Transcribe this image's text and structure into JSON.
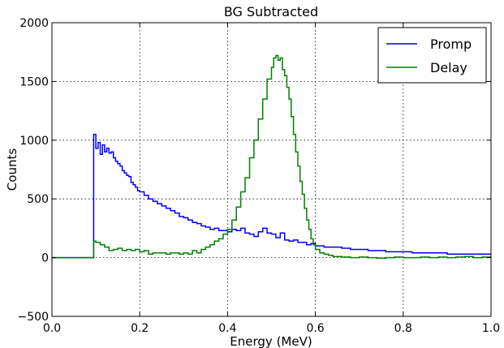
{
  "chart_data": {
    "type": "line",
    "title": "BG Subtracted",
    "xlabel": "Energy (MeV)",
    "ylabel": "Counts",
    "xlim": [
      0.0,
      1.0
    ],
    "ylim": [
      -500,
      2000
    ],
    "xticks": [
      0.0,
      0.2,
      0.4,
      0.6,
      0.8,
      1.0
    ],
    "xtick_labels": [
      "0.0",
      "0.2",
      "0.4",
      "0.6",
      "0.8",
      "1.0"
    ],
    "yticks": [
      -500,
      0,
      500,
      1000,
      1500,
      2000
    ],
    "ytick_labels": [
      "−500",
      "0",
      "500",
      "1000",
      "1500",
      "2000"
    ],
    "grid": true,
    "legend_position": "top-right",
    "series": [
      {
        "name": "Promp",
        "color": "#0000ff",
        "points": [
          [
            0.0,
            0
          ],
          [
            0.09,
            0
          ],
          [
            0.095,
            1050
          ],
          [
            0.1,
            930
          ],
          [
            0.105,
            980
          ],
          [
            0.11,
            880
          ],
          [
            0.115,
            960
          ],
          [
            0.12,
            900
          ],
          [
            0.125,
            930
          ],
          [
            0.13,
            890
          ],
          [
            0.135,
            900
          ],
          [
            0.14,
            850
          ],
          [
            0.145,
            820
          ],
          [
            0.15,
            800
          ],
          [
            0.155,
            780
          ],
          [
            0.16,
            740
          ],
          [
            0.165,
            720
          ],
          [
            0.17,
            700
          ],
          [
            0.175,
            690
          ],
          [
            0.18,
            640
          ],
          [
            0.185,
            620
          ],
          [
            0.19,
            600
          ],
          [
            0.195,
            570
          ],
          [
            0.2,
            560
          ],
          [
            0.21,
            530
          ],
          [
            0.22,
            500
          ],
          [
            0.23,
            480
          ],
          [
            0.24,
            460
          ],
          [
            0.25,
            440
          ],
          [
            0.26,
            420
          ],
          [
            0.27,
            400
          ],
          [
            0.28,
            380
          ],
          [
            0.29,
            350
          ],
          [
            0.3,
            340
          ],
          [
            0.31,
            320
          ],
          [
            0.32,
            300
          ],
          [
            0.33,
            290
          ],
          [
            0.34,
            270
          ],
          [
            0.35,
            260
          ],
          [
            0.36,
            240
          ],
          [
            0.37,
            250
          ],
          [
            0.38,
            230
          ],
          [
            0.39,
            230
          ],
          [
            0.4,
            220
          ],
          [
            0.41,
            240
          ],
          [
            0.42,
            230
          ],
          [
            0.43,
            250
          ],
          [
            0.44,
            210
          ],
          [
            0.45,
            200
          ],
          [
            0.46,
            180
          ],
          [
            0.47,
            220
          ],
          [
            0.48,
            250
          ],
          [
            0.49,
            210
          ],
          [
            0.5,
            200
          ],
          [
            0.51,
            170
          ],
          [
            0.52,
            210
          ],
          [
            0.53,
            150
          ],
          [
            0.54,
            140
          ],
          [
            0.55,
            150
          ],
          [
            0.56,
            130
          ],
          [
            0.57,
            130
          ],
          [
            0.58,
            110
          ],
          [
            0.59,
            120
          ],
          [
            0.6,
            100
          ],
          [
            0.62,
            90
          ],
          [
            0.64,
            90
          ],
          [
            0.66,
            80
          ],
          [
            0.68,
            70
          ],
          [
            0.7,
            70
          ],
          [
            0.72,
            60
          ],
          [
            0.74,
            60
          ],
          [
            0.76,
            50
          ],
          [
            0.78,
            50
          ],
          [
            0.8,
            50
          ],
          [
            0.82,
            40
          ],
          [
            0.84,
            40
          ],
          [
            0.86,
            40
          ],
          [
            0.88,
            40
          ],
          [
            0.9,
            30
          ],
          [
            0.92,
            30
          ],
          [
            0.94,
            30
          ],
          [
            0.96,
            30
          ],
          [
            0.98,
            30
          ],
          [
            1.0,
            30
          ]
        ]
      },
      {
        "name": "Delay",
        "color": "#008000",
        "points": [
          [
            0.0,
            0
          ],
          [
            0.09,
            0
          ],
          [
            0.095,
            140
          ],
          [
            0.1,
            130
          ],
          [
            0.11,
            110
          ],
          [
            0.12,
            90
          ],
          [
            0.13,
            60
          ],
          [
            0.14,
            70
          ],
          [
            0.15,
            80
          ],
          [
            0.16,
            60
          ],
          [
            0.17,
            70
          ],
          [
            0.18,
            60
          ],
          [
            0.19,
            70
          ],
          [
            0.2,
            50
          ],
          [
            0.21,
            60
          ],
          [
            0.22,
            30
          ],
          [
            0.23,
            40
          ],
          [
            0.24,
            40
          ],
          [
            0.25,
            40
          ],
          [
            0.26,
            30
          ],
          [
            0.27,
            40
          ],
          [
            0.28,
            40
          ],
          [
            0.29,
            30
          ],
          [
            0.3,
            40
          ],
          [
            0.31,
            30
          ],
          [
            0.32,
            60
          ],
          [
            0.33,
            40
          ],
          [
            0.34,
            70
          ],
          [
            0.35,
            90
          ],
          [
            0.36,
            110
          ],
          [
            0.37,
            140
          ],
          [
            0.38,
            160
          ],
          [
            0.39,
            200
          ],
          [
            0.4,
            240
          ],
          [
            0.41,
            320
          ],
          [
            0.42,
            430
          ],
          [
            0.43,
            560
          ],
          [
            0.44,
            680
          ],
          [
            0.45,
            850
          ],
          [
            0.46,
            1000
          ],
          [
            0.47,
            1180
          ],
          [
            0.48,
            1350
          ],
          [
            0.49,
            1520
          ],
          [
            0.5,
            1620
          ],
          [
            0.505,
            1700
          ],
          [
            0.51,
            1720
          ],
          [
            0.515,
            1680
          ],
          [
            0.52,
            1700
          ],
          [
            0.525,
            1600
          ],
          [
            0.53,
            1550
          ],
          [
            0.535,
            1450
          ],
          [
            0.54,
            1350
          ],
          [
            0.545,
            1200
          ],
          [
            0.55,
            1050
          ],
          [
            0.555,
            900
          ],
          [
            0.56,
            780
          ],
          [
            0.565,
            650
          ],
          [
            0.57,
            540
          ],
          [
            0.575,
            420
          ],
          [
            0.58,
            320
          ],
          [
            0.585,
            240
          ],
          [
            0.59,
            160
          ],
          [
            0.595,
            110
          ],
          [
            0.6,
            70
          ],
          [
            0.61,
            40
          ],
          [
            0.62,
            30
          ],
          [
            0.63,
            20
          ],
          [
            0.64,
            10
          ],
          [
            0.66,
            5
          ],
          [
            0.68,
            0
          ],
          [
            0.7,
            5
          ],
          [
            0.72,
            0
          ],
          [
            0.74,
            -5
          ],
          [
            0.76,
            0
          ],
          [
            0.78,
            5
          ],
          [
            0.8,
            0
          ],
          [
            0.82,
            0
          ],
          [
            0.84,
            5
          ],
          [
            0.86,
            0
          ],
          [
            0.88,
            5
          ],
          [
            0.9,
            0
          ],
          [
            0.92,
            5
          ],
          [
            0.94,
            10
          ],
          [
            0.96,
            0
          ],
          [
            0.98,
            5
          ],
          [
            1.0,
            5
          ]
        ]
      }
    ]
  }
}
